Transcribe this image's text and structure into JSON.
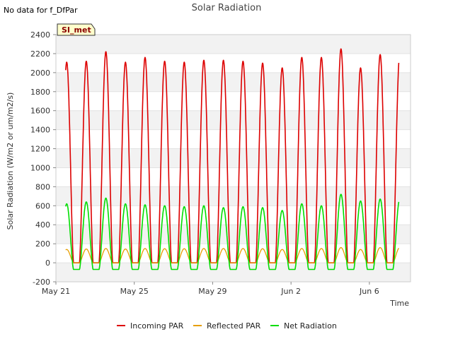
{
  "no_data_note": "No data for f_DfPar",
  "badge": "SI_met",
  "chart_data": {
    "type": "line",
    "title": "Solar Radiation",
    "xlabel": "Time",
    "ylabel": "Solar Radiation (W/m2 or um/m2/s)",
    "ylim": [
      -200,
      2400
    ],
    "yticks": [
      -200,
      0,
      200,
      400,
      600,
      800,
      1000,
      1200,
      1400,
      1600,
      1800,
      2000,
      2200,
      2400
    ],
    "xlim_days": [
      0,
      18.1
    ],
    "xticks": [
      {
        "day": 0,
        "label": "May 21"
      },
      {
        "day": 4,
        "label": "May 25"
      },
      {
        "day": 8,
        "label": "May 29"
      },
      {
        "day": 12,
        "label": "Jun 2"
      },
      {
        "day": 16,
        "label": "Jun 6"
      }
    ],
    "grid_bands": true,
    "legend_position": "bottom",
    "series": [
      {
        "name": "Incoming PAR",
        "color": "#dd0000",
        "peaks": [
          2110,
          2120,
          2220,
          2110,
          2160,
          2120,
          2110,
          2130,
          2130,
          2120,
          2100,
          2050,
          2160,
          2160,
          2250,
          2050,
          2190
        ]
      },
      {
        "name": "Reflected PAR",
        "color": "#e69f00",
        "peaks": [
          140,
          145,
          150,
          145,
          150,
          148,
          148,
          150,
          150,
          150,
          148,
          140,
          150,
          150,
          160,
          140,
          160
        ]
      },
      {
        "name": "Net Radiation",
        "color": "#00dd00",
        "peaks": [
          620,
          640,
          680,
          620,
          610,
          600,
          590,
          600,
          580,
          590,
          580,
          550,
          620,
          600,
          720,
          650,
          670
        ]
      }
    ],
    "net_night_value": -70
  }
}
